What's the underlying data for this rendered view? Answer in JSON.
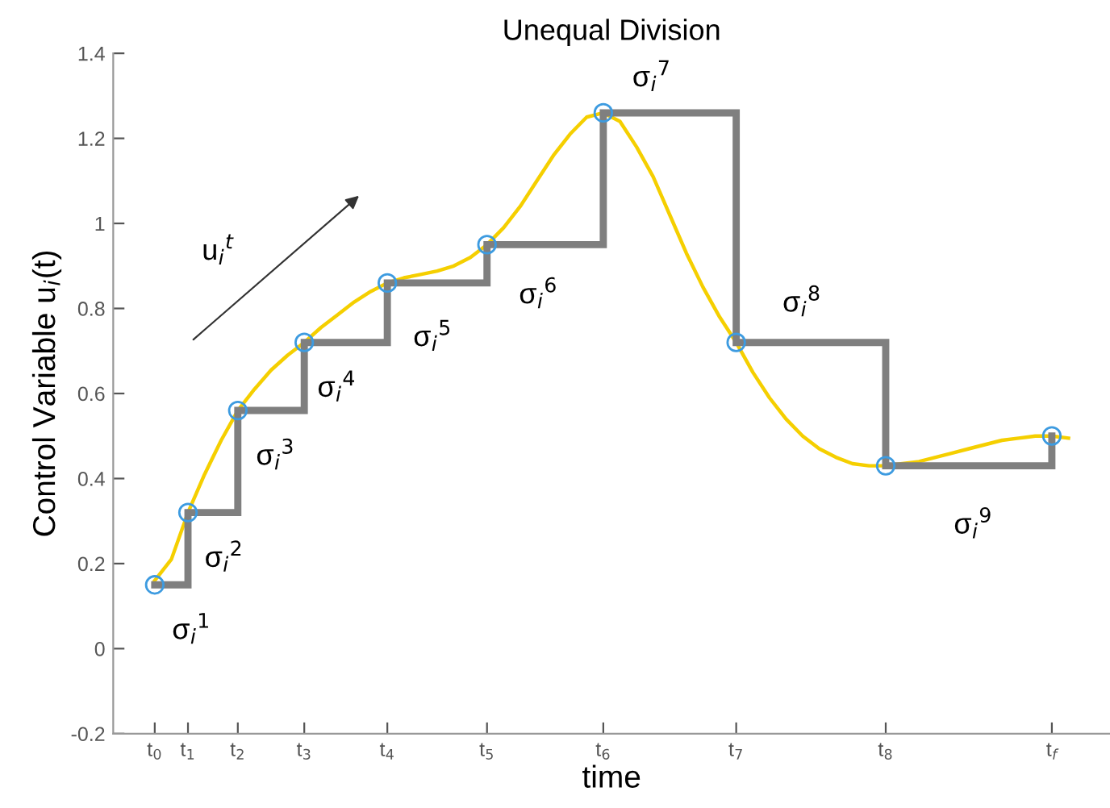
{
  "chart_data": {
    "type": "line",
    "title": "Unequal Division",
    "xlabel": "time",
    "ylabel": "Control Variable u$_{i}$(t)",
    "categories": [
      null,
      null,
      "t$_{0}$",
      null,
      "t$_{1}$",
      null,
      null,
      "t$_{2}$",
      null,
      null,
      null,
      "t$_{3}$",
      null,
      null,
      null,
      null,
      "t$_{4}$",
      null,
      null,
      null,
      null,
      null,
      "t$_{5}$",
      null,
      null,
      null,
      null,
      null,
      null,
      "t$_{6}$",
      null,
      null,
      null,
      null,
      null,
      null,
      null,
      "t$_{7}$",
      null,
      null,
      null,
      null,
      null,
      null,
      null,
      null,
      "t$_{8}$",
      null,
      null,
      null,
      null,
      null,
      null,
      null,
      null,
      null,
      "t$_{f}$",
      null,
      null,
      null
    ],
    "ylim": [
      -0.2,
      1.4
    ],
    "yticks": [
      {
        "value": -0.2,
        "label": "-0.2"
      },
      0,
      0.2,
      0.4,
      0.6,
      0.8,
      1,
      1.2,
      1.4
    ],
    "grid": false,
    "series": [
      {
        "color": "#f5cf00",
        "values": [
          null,
          null,
          0.16,
          0.21,
          0.32,
          0.41,
          0.49,
          0.56,
          0.61,
          0.655,
          0.69,
          0.72,
          0.755,
          0.785,
          0.815,
          0.84,
          0.86,
          0.872,
          0.88,
          0.888,
          0.9,
          0.92,
          0.95,
          0.99,
          1.04,
          1.1,
          1.16,
          1.21,
          1.25,
          1.26,
          1.24,
          1.18,
          1.11,
          1.02,
          0.93,
          0.85,
          0.78,
          0.72,
          0.65,
          0.59,
          0.54,
          0.5,
          0.47,
          0.45,
          0.435,
          0.43,
          0.43,
          0.435,
          0.44,
          0.45,
          0.46,
          0.47,
          0.48,
          0.49,
          0.495,
          0.5,
          0.5,
          0.495,
          null,
          null
        ]
      },
      {
        "type": "step",
        "color": "#7f7f7f",
        "values": [
          null,
          null,
          0.15,
          null,
          0.32,
          null,
          null,
          0.56,
          null,
          null,
          null,
          0.72,
          null,
          null,
          null,
          null,
          0.86,
          null,
          null,
          null,
          null,
          null,
          0.95,
          null,
          null,
          null,
          null,
          null,
          null,
          1.26,
          null,
          null,
          null,
          null,
          null,
          null,
          null,
          0.72,
          null,
          null,
          null,
          null,
          null,
          null,
          null,
          null,
          0.43,
          null,
          null,
          null,
          null,
          null,
          null,
          null,
          null,
          null,
          0.5,
          null,
          null,
          null
        ]
      },
      {
        "type": "scatter",
        "marker": "circle",
        "color": "#3d9be0",
        "values": [
          null,
          null,
          0.15,
          null,
          0.32,
          null,
          null,
          0.56,
          null,
          null,
          null,
          0.72,
          null,
          null,
          null,
          null,
          0.86,
          null,
          null,
          null,
          null,
          null,
          0.95,
          null,
          null,
          null,
          null,
          null,
          null,
          1.26,
          null,
          null,
          null,
          null,
          null,
          null,
          null,
          0.72,
          null,
          null,
          null,
          null,
          null,
          null,
          null,
          null,
          0.43,
          null,
          null,
          null,
          null,
          null,
          null,
          null,
          null,
          null,
          0.5,
          null,
          null,
          null
        ]
      }
    ],
    "annotations": [
      "σ$_{i}$$^{1}$",
      "σ$_{i}$$^{2}$",
      "σ$_{i}$$^{3}$",
      "σ$_{i}$$^{4}$",
      "σ$_{i}$$^{5}$",
      "σ$_{i}$$^{6}$",
      "σ$_{i}$$^{7}$",
      "σ$_{i}$$^{8}$",
      "σ$_{i}$$^{9}$",
      "u$_{i}$$^{t}$"
    ]
  }
}
